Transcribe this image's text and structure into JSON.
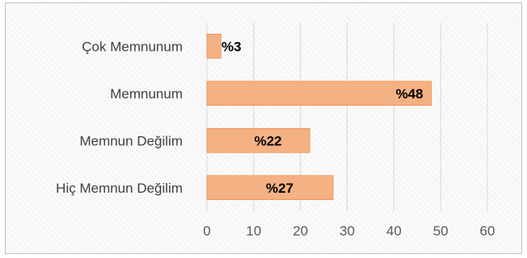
{
  "chart_data": {
    "type": "bar",
    "orientation": "horizontal",
    "categories": [
      "Çok Memnunum",
      "Memnunum",
      "Memnun Değilim",
      "Hiç Memnun Değilim"
    ],
    "values": [
      3,
      48,
      22,
      27
    ],
    "data_labels": [
      "%3",
      "%48",
      "%22",
      "%27"
    ],
    "x_ticks": [
      "0",
      "10",
      "20",
      "30",
      "40",
      "50",
      "60"
    ],
    "xlim": [
      0,
      60
    ],
    "grid": true,
    "legend": "none",
    "title": "",
    "xlabel": "",
    "ylabel": "",
    "bar_color": "#f4b183",
    "bar_edge_color": "#ed7d31"
  }
}
